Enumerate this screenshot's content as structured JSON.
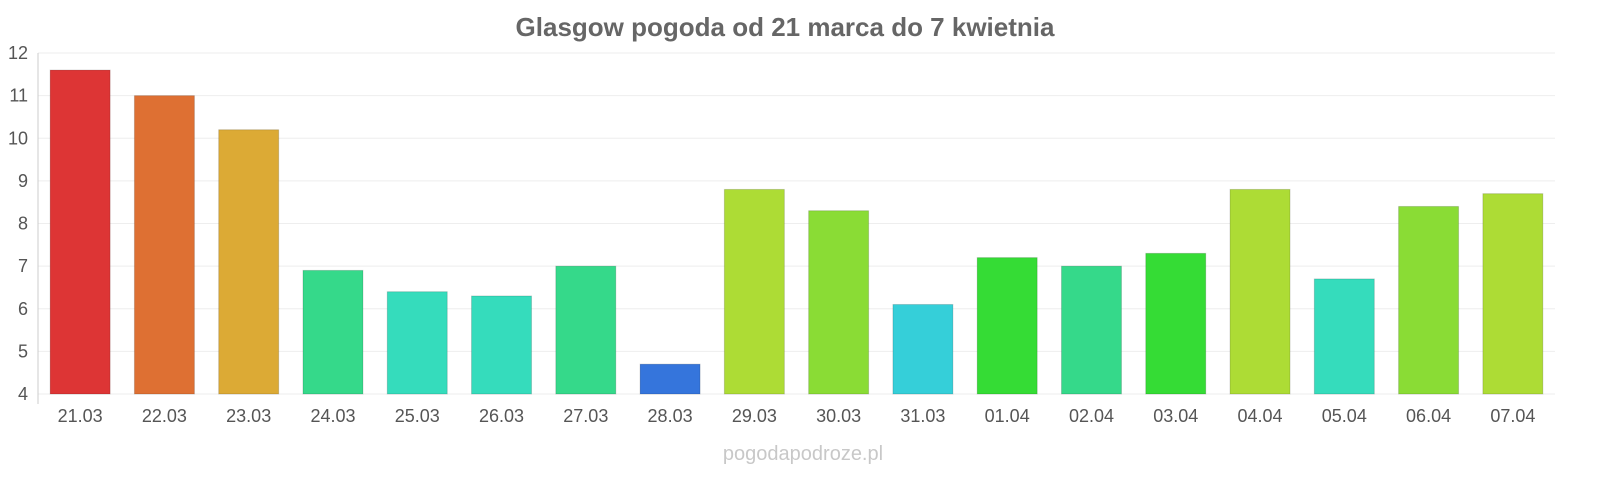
{
  "chart_data": {
    "type": "bar",
    "title": "Glasgow pogoda od 21 marca do 7 kwietnia",
    "xlabel": "",
    "ylabel": "",
    "ylim": [
      4,
      12
    ],
    "yticks": [
      4,
      5,
      6,
      7,
      8,
      9,
      10,
      11,
      12
    ],
    "grid": true,
    "categories": [
      "21.03",
      "22.03",
      "23.03",
      "24.03",
      "25.03",
      "26.03",
      "27.03",
      "28.03",
      "29.03",
      "30.03",
      "31.03",
      "01.04",
      "02.04",
      "03.04",
      "04.04",
      "05.04",
      "06.04",
      "07.04"
    ],
    "values": [
      11.6,
      11.0,
      10.2,
      6.9,
      6.4,
      6.3,
      7.0,
      4.7,
      8.8,
      8.3,
      6.1,
      7.2,
      7.0,
      7.3,
      8.8,
      6.7,
      8.4,
      8.7
    ],
    "colors": [
      "#dd3535",
      "#de7033",
      "#dcaa35",
      "#35d98a",
      "#35dcbc",
      "#35dcbc",
      "#35d98a",
      "#3575dc",
      "#addc35",
      "#8adc35",
      "#35cfd9",
      "#35dc35",
      "#35d98a",
      "#35dc35",
      "#addc35",
      "#35dcbc",
      "#8adc35",
      "#addc35"
    ]
  },
  "footer": "pogodapodroze.pl"
}
